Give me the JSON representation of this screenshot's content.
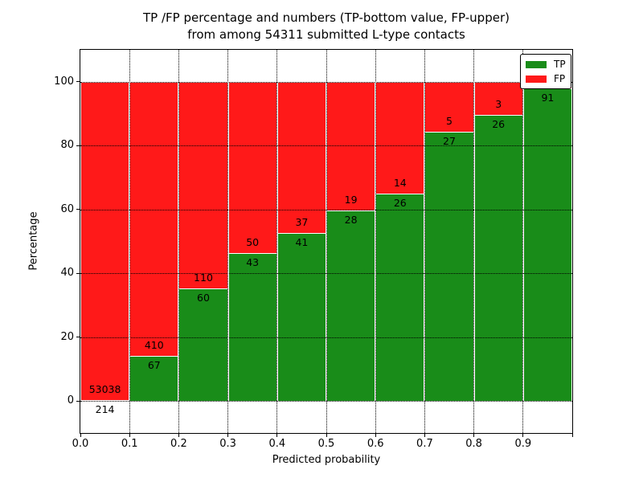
{
  "title": {
    "line1": "TP /FP percentage and numbers (TP-bottom value, FP-upper)",
    "line2": "from among 54311 submitted L-type contacts"
  },
  "axes": {
    "x_label": "Predicted probability",
    "y_label": "Percentage",
    "x_tick_labels": [
      "0.0",
      "0.1",
      "0.2",
      "0.3",
      "0.4",
      "0.5",
      "0.6",
      "0.7",
      "0.8",
      "0.9"
    ],
    "y_tick_labels": [
      "0",
      "20",
      "40",
      "60",
      "80",
      "100"
    ]
  },
  "legend": {
    "items": [
      {
        "label": "TP",
        "color": "#198c19"
      },
      {
        "label": "FP",
        "color": "#ff1919"
      }
    ]
  },
  "chart_data": {
    "type": "bar",
    "subtype": "stacked-percentage-histogram",
    "title": "TP /FP percentage and numbers (TP-bottom value, FP-upper) from among 54311 submitted L-type contacts",
    "xlabel": "Predicted probability",
    "ylabel": "Percentage",
    "xlim": [
      0.0,
      1.0
    ],
    "ylim": [
      -10,
      110
    ],
    "grid": true,
    "legend_position": "upper right",
    "bin_edges": [
      0.0,
      0.1,
      0.2,
      0.3,
      0.4,
      0.5,
      0.6,
      0.7,
      0.8,
      0.9,
      1.0
    ],
    "series": [
      {
        "name": "TP",
        "color": "#198c19",
        "counts": [
          214,
          67,
          60,
          43,
          41,
          28,
          26,
          27,
          26,
          91
        ],
        "percent": [
          0.4,
          14.05,
          35.29,
          46.24,
          52.56,
          59.57,
          65.0,
          84.38,
          89.66,
          97.9
        ]
      },
      {
        "name": "FP",
        "color": "#ff1919",
        "counts": [
          53038,
          410,
          110,
          50,
          37,
          19,
          14,
          5,
          3,
          null
        ],
        "percent": [
          99.6,
          85.95,
          64.71,
          53.76,
          47.44,
          40.43,
          35.0,
          15.62,
          10.34,
          2.1
        ]
      }
    ],
    "fp_label_visible": [
      true,
      true,
      true,
      true,
      true,
      true,
      true,
      true,
      true,
      false
    ],
    "y_gridline_percents": [
      0,
      20,
      40,
      60,
      80,
      100
    ]
  }
}
